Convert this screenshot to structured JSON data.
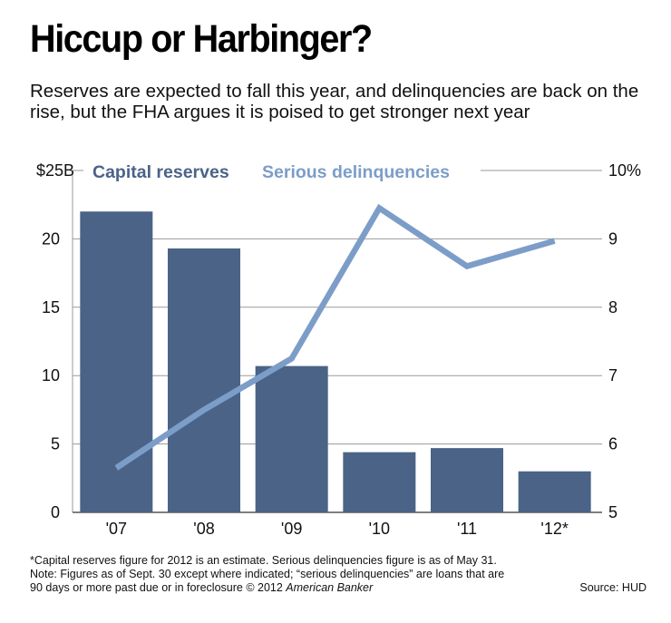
{
  "title": "Hiccup or Harbinger?",
  "subtitle": "Reserves are expected to fall this year, and delinquencies are back on the rise, but the FHA argues it is poised to get stronger next year",
  "colors": {
    "bar": "#4a6387",
    "line": "#7c9dc8",
    "legend_bar": "#4a6387",
    "legend_line": "#7c9dc8",
    "grid": "#9a9a9a"
  },
  "chart_data": {
    "type": "bar",
    "categories": [
      "'07",
      "'08",
      "'09",
      "'10",
      "'11",
      "'12*"
    ],
    "series": [
      {
        "name": "Capital reserves",
        "type": "bar",
        "axis": "left",
        "values": [
          22.0,
          19.3,
          10.7,
          4.4,
          4.7,
          3.0
        ]
      },
      {
        "name": "Serious delinquencies",
        "type": "line",
        "axis": "right",
        "values": [
          5.65,
          6.5,
          7.25,
          9.45,
          8.6,
          8.97
        ]
      }
    ],
    "y_left": {
      "range": [
        0,
        25
      ],
      "ticks": [
        0,
        5,
        10,
        15,
        20,
        25
      ],
      "tick_labels": [
        "0",
        "5",
        "10",
        "15",
        "20",
        "$25B"
      ]
    },
    "y_right": {
      "range": [
        5,
        10
      ],
      "ticks": [
        5,
        6,
        7,
        8,
        9,
        10
      ],
      "tick_labels": [
        "5",
        "6",
        "7",
        "8",
        "9",
        "10%"
      ]
    },
    "grid": true,
    "legend_placement": "top"
  },
  "footnote": {
    "line1": "*Capital reserves figure for 2012 is an estimate. Serious delinquencies figure is as of May 31.",
    "line2": "Note: Figures as of Sept. 30 except where indicated; “serious delinquencies” are loans that are",
    "line3_prefix": "90 days or more past due or in foreclosure © 2012 ",
    "brand": "American Banker",
    "source": "Source: HUD"
  }
}
